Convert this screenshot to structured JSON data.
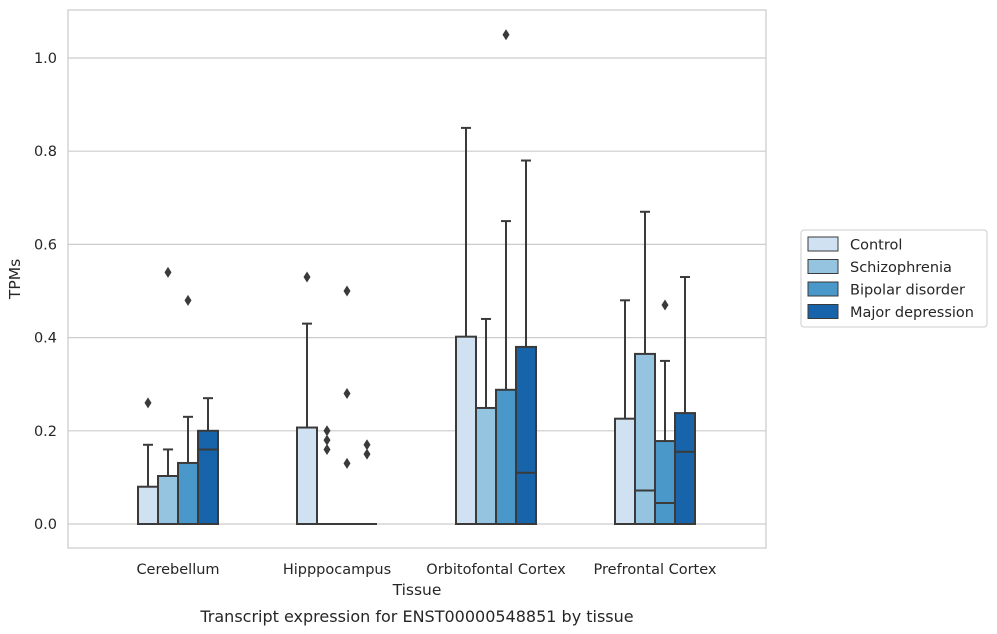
{
  "caption": "Transcript expression for ENST00000548851 by tissue",
  "chart_data": {
    "type": "box",
    "title": "",
    "xlabel": "Tissue",
    "ylabel": "TPMs",
    "ylim": [
      -0.05,
      1.1
    ],
    "yticks": [
      0.0,
      0.2,
      0.4,
      0.6,
      0.8,
      1.0
    ],
    "ytick_labels": [
      "0.0",
      "0.2",
      "0.4",
      "0.6",
      "0.8",
      "1.0"
    ],
    "grid": "horizontal",
    "legend_position": "right",
    "categories": [
      "Cerebellum",
      "Hipppocampus",
      "Orbitofontal Cortex",
      "Prefrontal Cortex"
    ],
    "series": [
      {
        "name": "Control",
        "color": "#d0e1f2",
        "boxes": [
          {
            "q1": 0.0,
            "median": 0.0,
            "q3": 0.08,
            "whisker_low": 0.0,
            "whisker_high": 0.17,
            "outliers": [
              0.26
            ]
          },
          {
            "q1": 0.0,
            "median": 0.0,
            "q3": 0.207,
            "whisker_low": 0.0,
            "whisker_high": 0.43,
            "outliers": [
              0.53
            ]
          },
          {
            "q1": 0.0,
            "median": 0.0,
            "q3": 0.402,
            "whisker_low": 0.0,
            "whisker_high": 0.85,
            "outliers": []
          },
          {
            "q1": 0.0,
            "median": 0.0,
            "q3": 0.226,
            "whisker_low": 0.0,
            "whisker_high": 0.48,
            "outliers": []
          }
        ]
      },
      {
        "name": "Schizophrenia",
        "color": "#94c4df",
        "boxes": [
          {
            "q1": 0.0,
            "median": 0.0,
            "q3": 0.103,
            "whisker_low": 0.0,
            "whisker_high": 0.16,
            "outliers": [
              0.54
            ]
          },
          {
            "q1": 0.0,
            "median": 0.0,
            "q3": 0.0,
            "whisker_low": 0.0,
            "whisker_high": 0.0,
            "outliers": [
              0.2,
              0.18,
              0.16
            ]
          },
          {
            "q1": 0.0,
            "median": 0.0,
            "q3": 0.249,
            "whisker_low": 0.0,
            "whisker_high": 0.44,
            "outliers": []
          },
          {
            "q1": 0.0,
            "median": 0.072,
            "q3": 0.365,
            "whisker_low": 0.0,
            "whisker_high": 0.67,
            "outliers": []
          }
        ]
      },
      {
        "name": "Bipolar disorder",
        "color": "#4a98c9",
        "boxes": [
          {
            "q1": 0.0,
            "median": 0.0,
            "q3": 0.131,
            "whisker_low": 0.0,
            "whisker_high": 0.23,
            "outliers": [
              0.48
            ]
          },
          {
            "q1": 0.0,
            "median": 0.0,
            "q3": 0.0,
            "whisker_low": 0.0,
            "whisker_high": 0.0,
            "outliers": [
              0.5,
              0.28,
              0.13
            ]
          },
          {
            "q1": 0.0,
            "median": 0.0,
            "q3": 0.288,
            "whisker_low": 0.0,
            "whisker_high": 0.65,
            "outliers": [
              1.05
            ]
          },
          {
            "q1": 0.0,
            "median": 0.045,
            "q3": 0.178,
            "whisker_low": 0.0,
            "whisker_high": 0.35,
            "outliers": [
              0.47
            ]
          }
        ]
      },
      {
        "name": "Major depression",
        "color": "#1764ab",
        "boxes": [
          {
            "q1": 0.0,
            "median": 0.16,
            "q3": 0.2,
            "whisker_low": 0.0,
            "whisker_high": 0.27,
            "outliers": []
          },
          {
            "q1": 0.0,
            "median": 0.0,
            "q3": 0.0,
            "whisker_low": 0.0,
            "whisker_high": 0.0,
            "outliers": [
              0.17,
              0.15
            ]
          },
          {
            "q1": 0.0,
            "median": 0.11,
            "q3": 0.38,
            "whisker_low": 0.0,
            "whisker_high": 0.78,
            "outliers": []
          },
          {
            "q1": 0.0,
            "median": 0.155,
            "q3": 0.238,
            "whisker_low": 0.0,
            "whisker_high": 0.53,
            "outliers": []
          }
        ]
      }
    ]
  }
}
